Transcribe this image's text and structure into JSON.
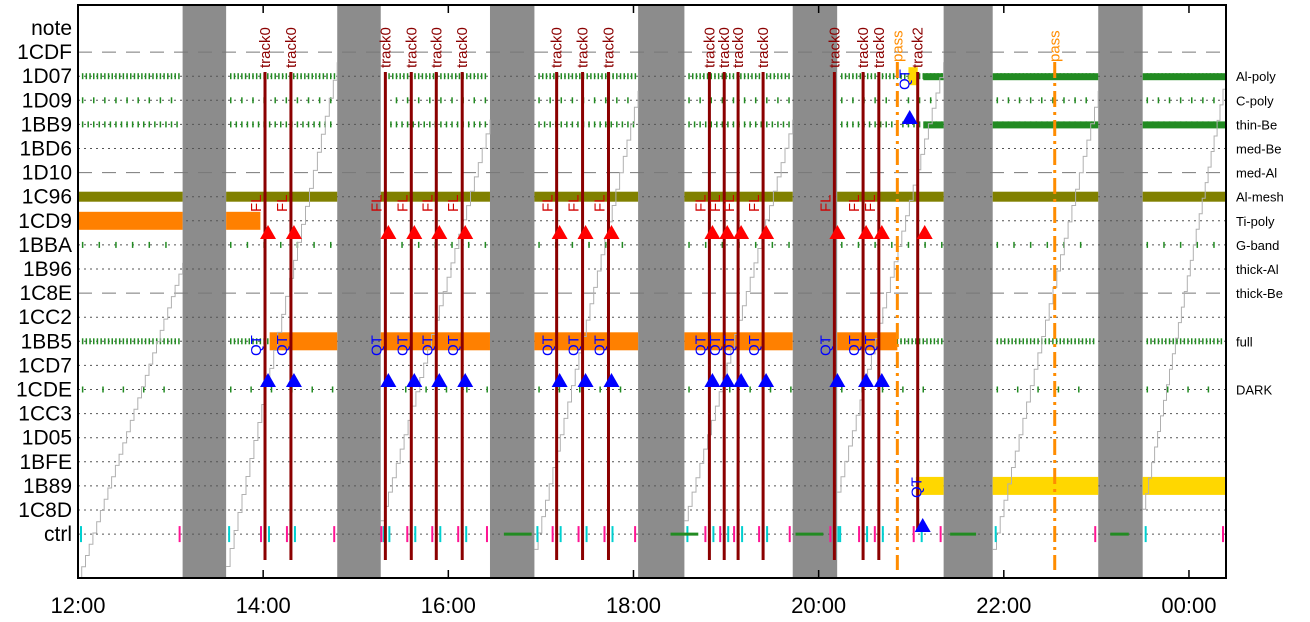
{
  "chart_data": {
    "type": "timeline",
    "x_ticks": [
      "12:00",
      "14:00",
      "16:00",
      "18:00",
      "20:00",
      "22:00",
      "00:00"
    ],
    "x_range_hours": [
      12.0,
      24.4
    ],
    "rows": [
      "note",
      "1CDF",
      "1D07",
      "1D09",
      "1BB9",
      "1BD6",
      "1D10",
      "1C96",
      "1CD9",
      "1BBA",
      "1B96",
      "1C8E",
      "1CC2",
      "1BB5",
      "1CD7",
      "1CDE",
      "1CC3",
      "1D05",
      "1BFE",
      "1B89",
      "1C8D",
      "ctrl"
    ],
    "row_names": {
      "1D07": "Al-poly",
      "1D09": "C-poly",
      "1BB9": "thin-Be",
      "1BD6": "med-Be",
      "1D10": "med-Al",
      "1C96": "Al-mesh",
      "1CD9": "Ti-poly",
      "1BBA": "G-band",
      "1B96": "thick-Al",
      "1C8E": "thick-Be",
      "1BB5": "full",
      "1CDE": "DARK"
    },
    "dark_intervals": [
      [
        13.13,
        13.6
      ],
      [
        14.8,
        15.27
      ],
      [
        16.45,
        16.93
      ],
      [
        18.05,
        18.55
      ],
      [
        19.72,
        20.2
      ],
      [
        21.35,
        21.88
      ],
      [
        23.02,
        23.5
      ]
    ],
    "bars": [
      {
        "row": "1C96",
        "start": 12.0,
        "end": 13.13,
        "color": "#808000"
      },
      {
        "row": "1C96",
        "start": 13.6,
        "end": 14.8,
        "color": "#808000"
      },
      {
        "row": "1C96",
        "start": 15.27,
        "end": 16.45,
        "color": "#808000"
      },
      {
        "row": "1C96",
        "start": 16.93,
        "end": 18.05,
        "color": "#808000"
      },
      {
        "row": "1C96",
        "start": 18.55,
        "end": 19.72,
        "color": "#808000"
      },
      {
        "row": "1C96",
        "start": 20.2,
        "end": 21.35,
        "color": "#808000"
      },
      {
        "row": "1C96",
        "start": 21.88,
        "end": 23.02,
        "color": "#808000"
      },
      {
        "row": "1C96",
        "start": 23.5,
        "end": 24.4,
        "color": "#808000"
      },
      {
        "row": "1CD9",
        "start": 12.0,
        "end": 13.13,
        "color": "#ff8000"
      },
      {
        "row": "1CD9",
        "start": 13.6,
        "end": 13.97,
        "color": "#ff8000"
      },
      {
        "row": "1BB5",
        "start": 14.07,
        "end": 14.8,
        "color": "#ff8000"
      },
      {
        "row": "1BB5",
        "start": 15.27,
        "end": 16.45,
        "color": "#ff8000"
      },
      {
        "row": "1BB5",
        "start": 16.93,
        "end": 18.05,
        "color": "#ff8000"
      },
      {
        "row": "1BB5",
        "start": 18.55,
        "end": 19.72,
        "color": "#ff8000"
      },
      {
        "row": "1BB5",
        "start": 20.2,
        "end": 20.85,
        "color": "#ff8000"
      },
      {
        "row": "1B89",
        "start": 21.05,
        "end": 21.35,
        "color": "#ffd700"
      },
      {
        "row": "1B89",
        "start": 21.88,
        "end": 23.02,
        "color": "#ffd700"
      },
      {
        "row": "1B89",
        "start": 23.5,
        "end": 24.4,
        "color": "#ffd700"
      },
      {
        "row": "1D07",
        "start": 20.97,
        "end": 21.07,
        "color": "#ffd700"
      }
    ],
    "dense_green": [
      {
        "row": "1D07",
        "start": 21.13,
        "end": 21.35
      },
      {
        "row": "1D07",
        "start": 21.88,
        "end": 23.02
      },
      {
        "row": "1D07",
        "start": 23.5,
        "end": 24.4
      },
      {
        "row": "1BB9",
        "start": 21.13,
        "end": 21.35
      },
      {
        "row": "1BB9",
        "start": 21.88,
        "end": 23.02
      },
      {
        "row": "1BB9",
        "start": 23.5,
        "end": 24.4
      }
    ],
    "tracks": [
      {
        "t": 14.02,
        "label": "track0"
      },
      {
        "t": 14.3,
        "label": "track0"
      },
      {
        "t": 15.32,
        "label": "track0"
      },
      {
        "t": 15.6,
        "label": "track0"
      },
      {
        "t": 15.87,
        "label": "track0"
      },
      {
        "t": 16.15,
        "label": "track0"
      },
      {
        "t": 17.17,
        "label": "track0"
      },
      {
        "t": 17.45,
        "label": "track0"
      },
      {
        "t": 17.73,
        "label": "track0"
      },
      {
        "t": 18.82,
        "label": "track0"
      },
      {
        "t": 18.98,
        "label": "track0"
      },
      {
        "t": 19.13,
        "label": "track0"
      },
      {
        "t": 19.4,
        "label": "track0"
      },
      {
        "t": 20.17,
        "label": "track0"
      },
      {
        "t": 20.48,
        "label": "track0"
      },
      {
        "t": 20.65,
        "label": "track0"
      },
      {
        "t": 21.07,
        "label": "track2"
      }
    ],
    "passes": [
      {
        "t": 20.85,
        "label": "pass"
      },
      {
        "t": 22.55,
        "label": "pass"
      }
    ],
    "annotations": {
      "fl": "FL",
      "qt": "QT"
    }
  }
}
